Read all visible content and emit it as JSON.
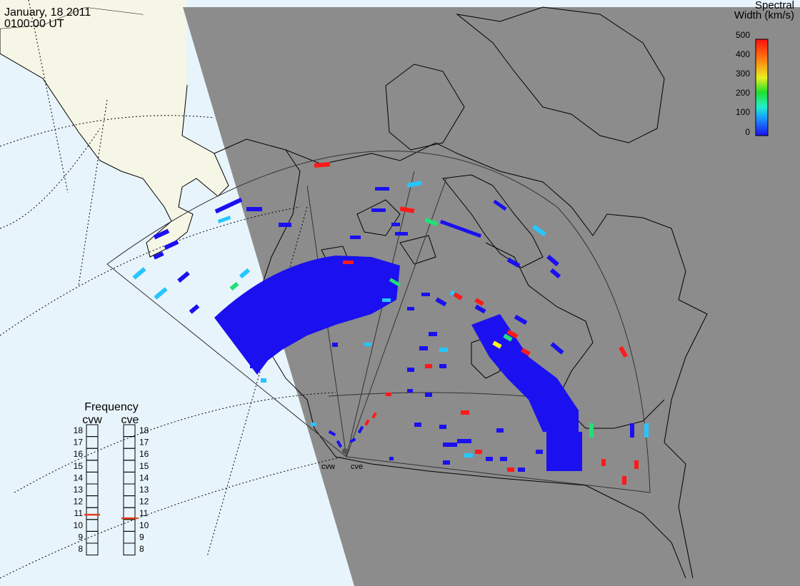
{
  "header": {
    "date": "January, 18 2011",
    "time": "0100:00 UT"
  },
  "colorbar": {
    "title_line1": "Spectral",
    "title_line2": "Width (km/s)",
    "ticks": [
      "500",
      "400",
      "300",
      "200",
      "100",
      "0"
    ]
  },
  "radars": {
    "west": "cvw",
    "east": "cve"
  },
  "frequency": {
    "title": "Frequency",
    "left_label": "cvw",
    "right_label": "cve",
    "ticks": [
      "18",
      "17",
      "16",
      "15",
      "14",
      "13",
      "12",
      "11",
      "10",
      "9",
      "8"
    ],
    "cvw_value": 10.9,
    "cve_value": 10.6,
    "marker_color": "#e0401a"
  },
  "colors": {
    "night_shade": "#8c8c8c",
    "ocean_day": "#e8f4fb",
    "land_day": "#f7f7e8",
    "low": "#1a10f0",
    "mid": "#26c6ff",
    "green": "#22e07a",
    "yellow": "#f6f61a",
    "high": "#ff1a1a"
  }
}
